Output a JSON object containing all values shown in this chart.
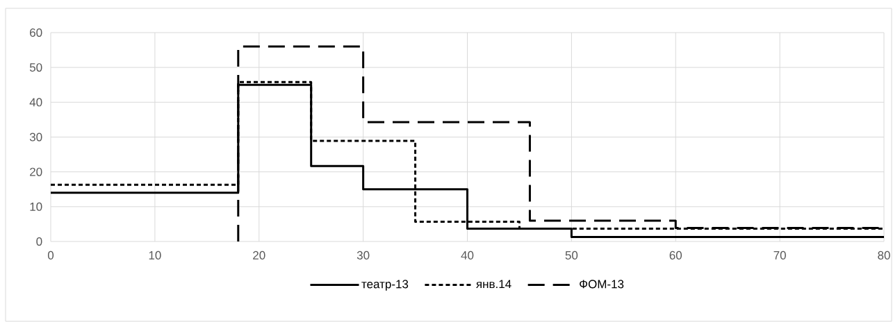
{
  "chart_data": {
    "type": "step",
    "xlim": [
      0,
      80
    ],
    "ylim": [
      0,
      60
    ],
    "xticks": [
      0,
      10,
      20,
      30,
      40,
      50,
      60,
      70,
      80
    ],
    "yticks": [
      0,
      10,
      20,
      30,
      40,
      50,
      60
    ],
    "grid": true,
    "legend": "bottom",
    "series": [
      {
        "name": "театр-13",
        "color": "#000000",
        "line_style": "solid",
        "x": [
          0,
          18,
          25,
          30,
          40,
          50,
          80
        ],
        "values": [
          14,
          45,
          21.7,
          15,
          3.7,
          1.3,
          1.3
        ]
      },
      {
        "name": "янв.14",
        "color": "#000000",
        "line_style": "dotted",
        "x": [
          0,
          18,
          25,
          35,
          45,
          80
        ],
        "values": [
          16.3,
          45.8,
          28.9,
          5.7,
          3.7,
          3.7
        ]
      },
      {
        "name": "ФОМ-13",
        "color": "#000000",
        "line_style": "dashed",
        "x": [
          18,
          18,
          30,
          46,
          60,
          80
        ],
        "values": [
          0,
          56,
          34.3,
          6,
          3.9,
          3.9
        ]
      }
    ]
  }
}
